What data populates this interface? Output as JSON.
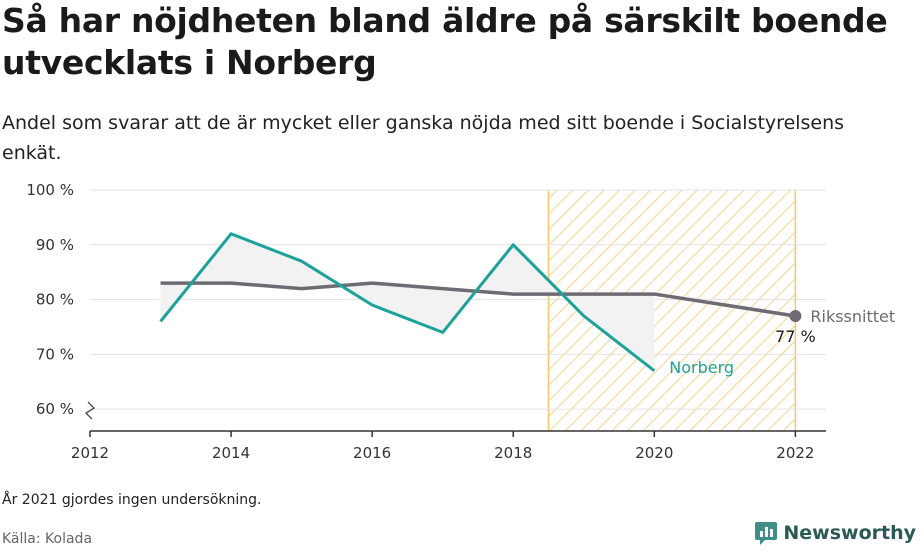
{
  "title": "Så har nöjdheten bland äldre på särskilt boende utvecklats i Norberg",
  "subtitle": "Andel som svarar att de är mycket eller ganska nöjda med sitt boende i Socialstyrelsens enkät.",
  "note": "År 2021 gjordes ingen undersökning.",
  "source": "Källa: Kolada",
  "brand": "Newsworthy",
  "colors": {
    "norberg": "#1aa39a",
    "riks": "#6e6b73",
    "hatch": "#f5c66a",
    "grid": "#e3e3e3",
    "fill": "#f2f2f2"
  },
  "chart_data": {
    "type": "line",
    "x_ticks": [
      2012,
      2014,
      2016,
      2018,
      2020,
      2022
    ],
    "y_ticks": [
      60,
      70,
      80,
      90,
      100
    ],
    "y_tick_labels": [
      "60 %",
      "70 %",
      "80 %",
      "90 %",
      "100 %"
    ],
    "xlim": [
      2012,
      2022.5
    ],
    "ylim": [
      56,
      100
    ],
    "highlight_range": [
      2018.5,
      2022
    ],
    "series": [
      {
        "name": "Norberg",
        "color": "#1aa39a",
        "x": [
          2013,
          2014,
          2015,
          2016,
          2017,
          2018,
          2019,
          2020
        ],
        "values": [
          76,
          92,
          87,
          79,
          74,
          90,
          77,
          67
        ]
      },
      {
        "name": "Rikssnittet",
        "color": "#6e6b73",
        "x": [
          2013,
          2014,
          2015,
          2016,
          2017,
          2018,
          2019,
          2020,
          2021,
          2022
        ],
        "values": [
          83,
          83,
          82,
          83,
          82,
          81,
          81,
          81,
          79,
          77
        ]
      }
    ],
    "annotations": [
      {
        "label": "77 %",
        "series": "Rikssnittet",
        "x": 2022,
        "y": 77
      }
    ]
  }
}
